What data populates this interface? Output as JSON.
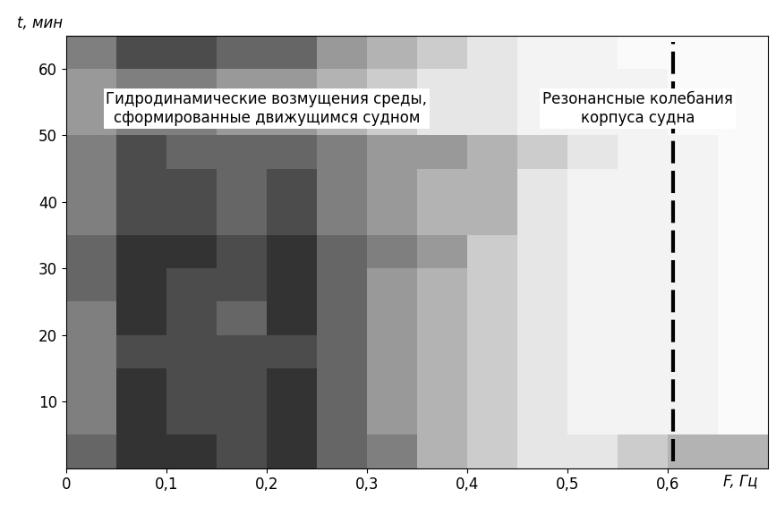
{
  "chart_data": {
    "type": "heatmap",
    "xlabel": "F, Гц",
    "ylabel": "t, мин",
    "xlim": [
      0,
      0.7
    ],
    "ylim": [
      0,
      65
    ],
    "xticks": [
      {
        "value": 0,
        "label": "0"
      },
      {
        "value": 0.1,
        "label": "0,1"
      },
      {
        "value": 0.2,
        "label": "0,2"
      },
      {
        "value": 0.3,
        "label": "0,3"
      },
      {
        "value": 0.4,
        "label": "0,4"
      },
      {
        "value": 0.5,
        "label": "0,5"
      },
      {
        "value": 0.6,
        "label": "0,6"
      }
    ],
    "yticks": [
      10,
      20,
      30,
      40,
      50,
      60
    ],
    "grid": false,
    "color": "#000000",
    "x_edges": [
      0,
      0.05,
      0.1,
      0.15,
      0.2,
      0.25,
      0.3,
      0.35,
      0.4,
      0.45,
      0.5,
      0.55,
      0.6,
      0.65,
      0.7
    ],
    "y_edges": [
      0,
      5,
      10,
      15,
      20,
      25,
      30,
      35,
      40,
      45,
      50,
      55,
      60,
      65
    ],
    "color_range": [
      0,
      1
    ],
    "cells": [
      [
        0.6,
        0.8,
        0.8,
        0.7,
        0.8,
        0.6,
        0.5,
        0.3,
        0.2,
        0.1,
        0.1,
        0.2,
        0.3,
        0.3
      ],
      [
        0.5,
        0.8,
        0.7,
        0.7,
        0.8,
        0.6,
        0.4,
        0.3,
        0.2,
        0.1,
        0.05,
        0.05,
        0.05,
        0.02
      ],
      [
        0.5,
        0.8,
        0.7,
        0.7,
        0.8,
        0.6,
        0.4,
        0.3,
        0.2,
        0.1,
        0.05,
        0.05,
        0.05,
        0.02
      ],
      [
        0.5,
        0.7,
        0.7,
        0.7,
        0.7,
        0.6,
        0.4,
        0.3,
        0.2,
        0.1,
        0.05,
        0.05,
        0.05,
        0.02
      ],
      [
        0.5,
        0.8,
        0.7,
        0.6,
        0.8,
        0.6,
        0.4,
        0.3,
        0.2,
        0.1,
        0.05,
        0.05,
        0.05,
        0.02
      ],
      [
        0.6,
        0.8,
        0.7,
        0.7,
        0.8,
        0.6,
        0.4,
        0.3,
        0.2,
        0.1,
        0.05,
        0.05,
        0.05,
        0.02
      ],
      [
        0.6,
        0.8,
        0.8,
        0.7,
        0.8,
        0.6,
        0.5,
        0.4,
        0.2,
        0.1,
        0.05,
        0.05,
        0.05,
        0.02
      ],
      [
        0.5,
        0.7,
        0.7,
        0.6,
        0.7,
        0.5,
        0.4,
        0.3,
        0.3,
        0.1,
        0.05,
        0.05,
        0.05,
        0.02
      ],
      [
        0.5,
        0.7,
        0.7,
        0.6,
        0.7,
        0.5,
        0.4,
        0.3,
        0.3,
        0.1,
        0.05,
        0.05,
        0.05,
        0.02
      ],
      [
        0.5,
        0.7,
        0.6,
        0.6,
        0.6,
        0.5,
        0.4,
        0.4,
        0.3,
        0.2,
        0.1,
        0.05,
        0.05,
        0.02
      ],
      [
        0.4,
        0.5,
        0.5,
        0.4,
        0.4,
        0.3,
        0.2,
        0.1,
        0.1,
        0.05,
        0.05,
        0.05,
        0.02,
        0.02
      ],
      [
        0.4,
        0.5,
        0.5,
        0.4,
        0.4,
        0.3,
        0.2,
        0.1,
        0.1,
        0.05,
        0.05,
        0.05,
        0.02,
        0.02
      ],
      [
        0.5,
        0.7,
        0.7,
        0.6,
        0.6,
        0.4,
        0.3,
        0.2,
        0.1,
        0.05,
        0.05,
        0.02,
        0.02,
        0.02
      ]
    ],
    "resonance": {
      "frequency": 0.605,
      "t_range": [
        1,
        64
      ]
    },
    "annotations": [
      {
        "text": "Гидродинамические возмущения среды,\nсформированные движущимся судном",
        "x": 0.2,
        "y": 54
      },
      {
        "text": "Резонансные колебания\nкорпуса судна",
        "x": 0.57,
        "y": 54
      }
    ]
  }
}
